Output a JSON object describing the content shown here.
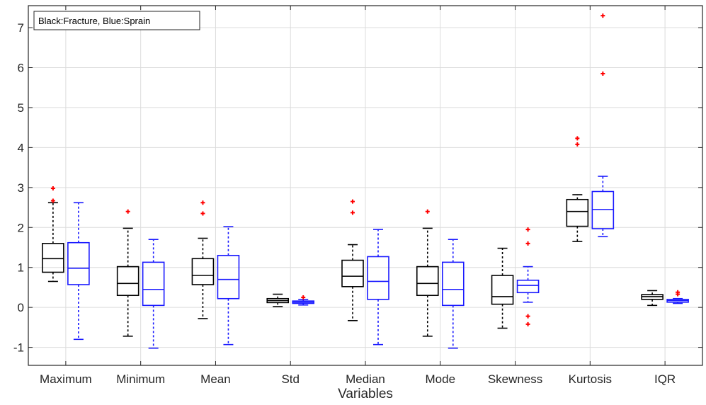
{
  "chart_data": {
    "type": "box",
    "xlabel": "Variables",
    "ylabel": "",
    "ylim": [
      -1.45,
      7.55
    ],
    "yticks": [
      -1,
      0,
      1,
      2,
      3,
      4,
      5,
      6,
      7
    ],
    "categories": [
      "Maximum",
      "Minimum",
      "Mean",
      "Std",
      "Median",
      "Mode",
      "Skewness",
      "Kurtosis",
      "IQR"
    ],
    "legend_text": "Black:Fracture, Blue:Sprain",
    "legend_position": "top-left",
    "grid": true,
    "colors": {
      "fracture": "#000000",
      "sprain": "#1a1aff",
      "outlier": "#ff0000",
      "grid": "#dcdcdc"
    },
    "series": [
      {
        "group": "Fracture",
        "boxes": [
          {
            "whisker_low": 0.65,
            "q1": 0.88,
            "median": 1.22,
            "q3": 1.6,
            "whisker_high": 2.62,
            "outliers": [
              2.67,
              2.98
            ]
          },
          {
            "whisker_low": -0.72,
            "q1": 0.3,
            "median": 0.6,
            "q3": 1.02,
            "whisker_high": 1.98,
            "outliers": [
              2.4
            ]
          },
          {
            "whisker_low": -0.28,
            "q1": 0.57,
            "median": 0.8,
            "q3": 1.22,
            "whisker_high": 1.73,
            "outliers": [
              2.35,
              2.62
            ]
          },
          {
            "whisker_low": 0.02,
            "q1": 0.12,
            "median": 0.17,
            "q3": 0.22,
            "whisker_high": 0.33,
            "outliers": []
          },
          {
            "whisker_low": -0.33,
            "q1": 0.52,
            "median": 0.78,
            "q3": 1.18,
            "whisker_high": 1.57,
            "outliers": [
              2.37,
              2.65
            ]
          },
          {
            "whisker_low": -0.72,
            "q1": 0.3,
            "median": 0.6,
            "q3": 1.02,
            "whisker_high": 1.98,
            "outliers": [
              2.4
            ]
          },
          {
            "whisker_low": -0.52,
            "q1": 0.08,
            "median": 0.27,
            "q3": 0.8,
            "whisker_high": 1.48,
            "outliers": []
          },
          {
            "whisker_low": 1.65,
            "q1": 2.03,
            "median": 2.4,
            "q3": 2.7,
            "whisker_high": 2.82,
            "outliers": [
              4.08,
              4.23
            ]
          },
          {
            "whisker_low": 0.05,
            "q1": 0.2,
            "median": 0.27,
            "q3": 0.32,
            "whisker_high": 0.42,
            "outliers": []
          }
        ]
      },
      {
        "group": "Sprain",
        "boxes": [
          {
            "whisker_low": -0.8,
            "q1": 0.57,
            "median": 0.98,
            "q3": 1.62,
            "whisker_high": 2.62,
            "outliers": []
          },
          {
            "whisker_low": -1.02,
            "q1": 0.05,
            "median": 0.45,
            "q3": 1.13,
            "whisker_high": 1.7,
            "outliers": []
          },
          {
            "whisker_low": -0.93,
            "q1": 0.22,
            "median": 0.7,
            "q3": 1.3,
            "whisker_high": 2.02,
            "outliers": []
          },
          {
            "whisker_low": 0.06,
            "q1": 0.1,
            "median": 0.13,
            "q3": 0.16,
            "whisker_high": 0.2,
            "outliers": [
              0.25
            ]
          },
          {
            "whisker_low": -0.93,
            "q1": 0.2,
            "median": 0.65,
            "q3": 1.27,
            "whisker_high": 1.95,
            "outliers": []
          },
          {
            "whisker_low": -1.02,
            "q1": 0.05,
            "median": 0.45,
            "q3": 1.13,
            "whisker_high": 1.7,
            "outliers": []
          },
          {
            "whisker_low": 0.13,
            "q1": 0.37,
            "median": 0.55,
            "q3": 0.68,
            "whisker_high": 1.02,
            "outliers": [
              -0.42,
              -0.22,
              1.6,
              1.95
            ]
          },
          {
            "whisker_low": 1.77,
            "q1": 1.97,
            "median": 2.45,
            "q3": 2.9,
            "whisker_high": 3.28,
            "outliers": [
              5.85,
              7.3
            ]
          },
          {
            "whisker_low": 0.1,
            "q1": 0.13,
            "median": 0.17,
            "q3": 0.2,
            "whisker_high": 0.22,
            "outliers": [
              0.33,
              0.38
            ]
          }
        ]
      }
    ]
  }
}
